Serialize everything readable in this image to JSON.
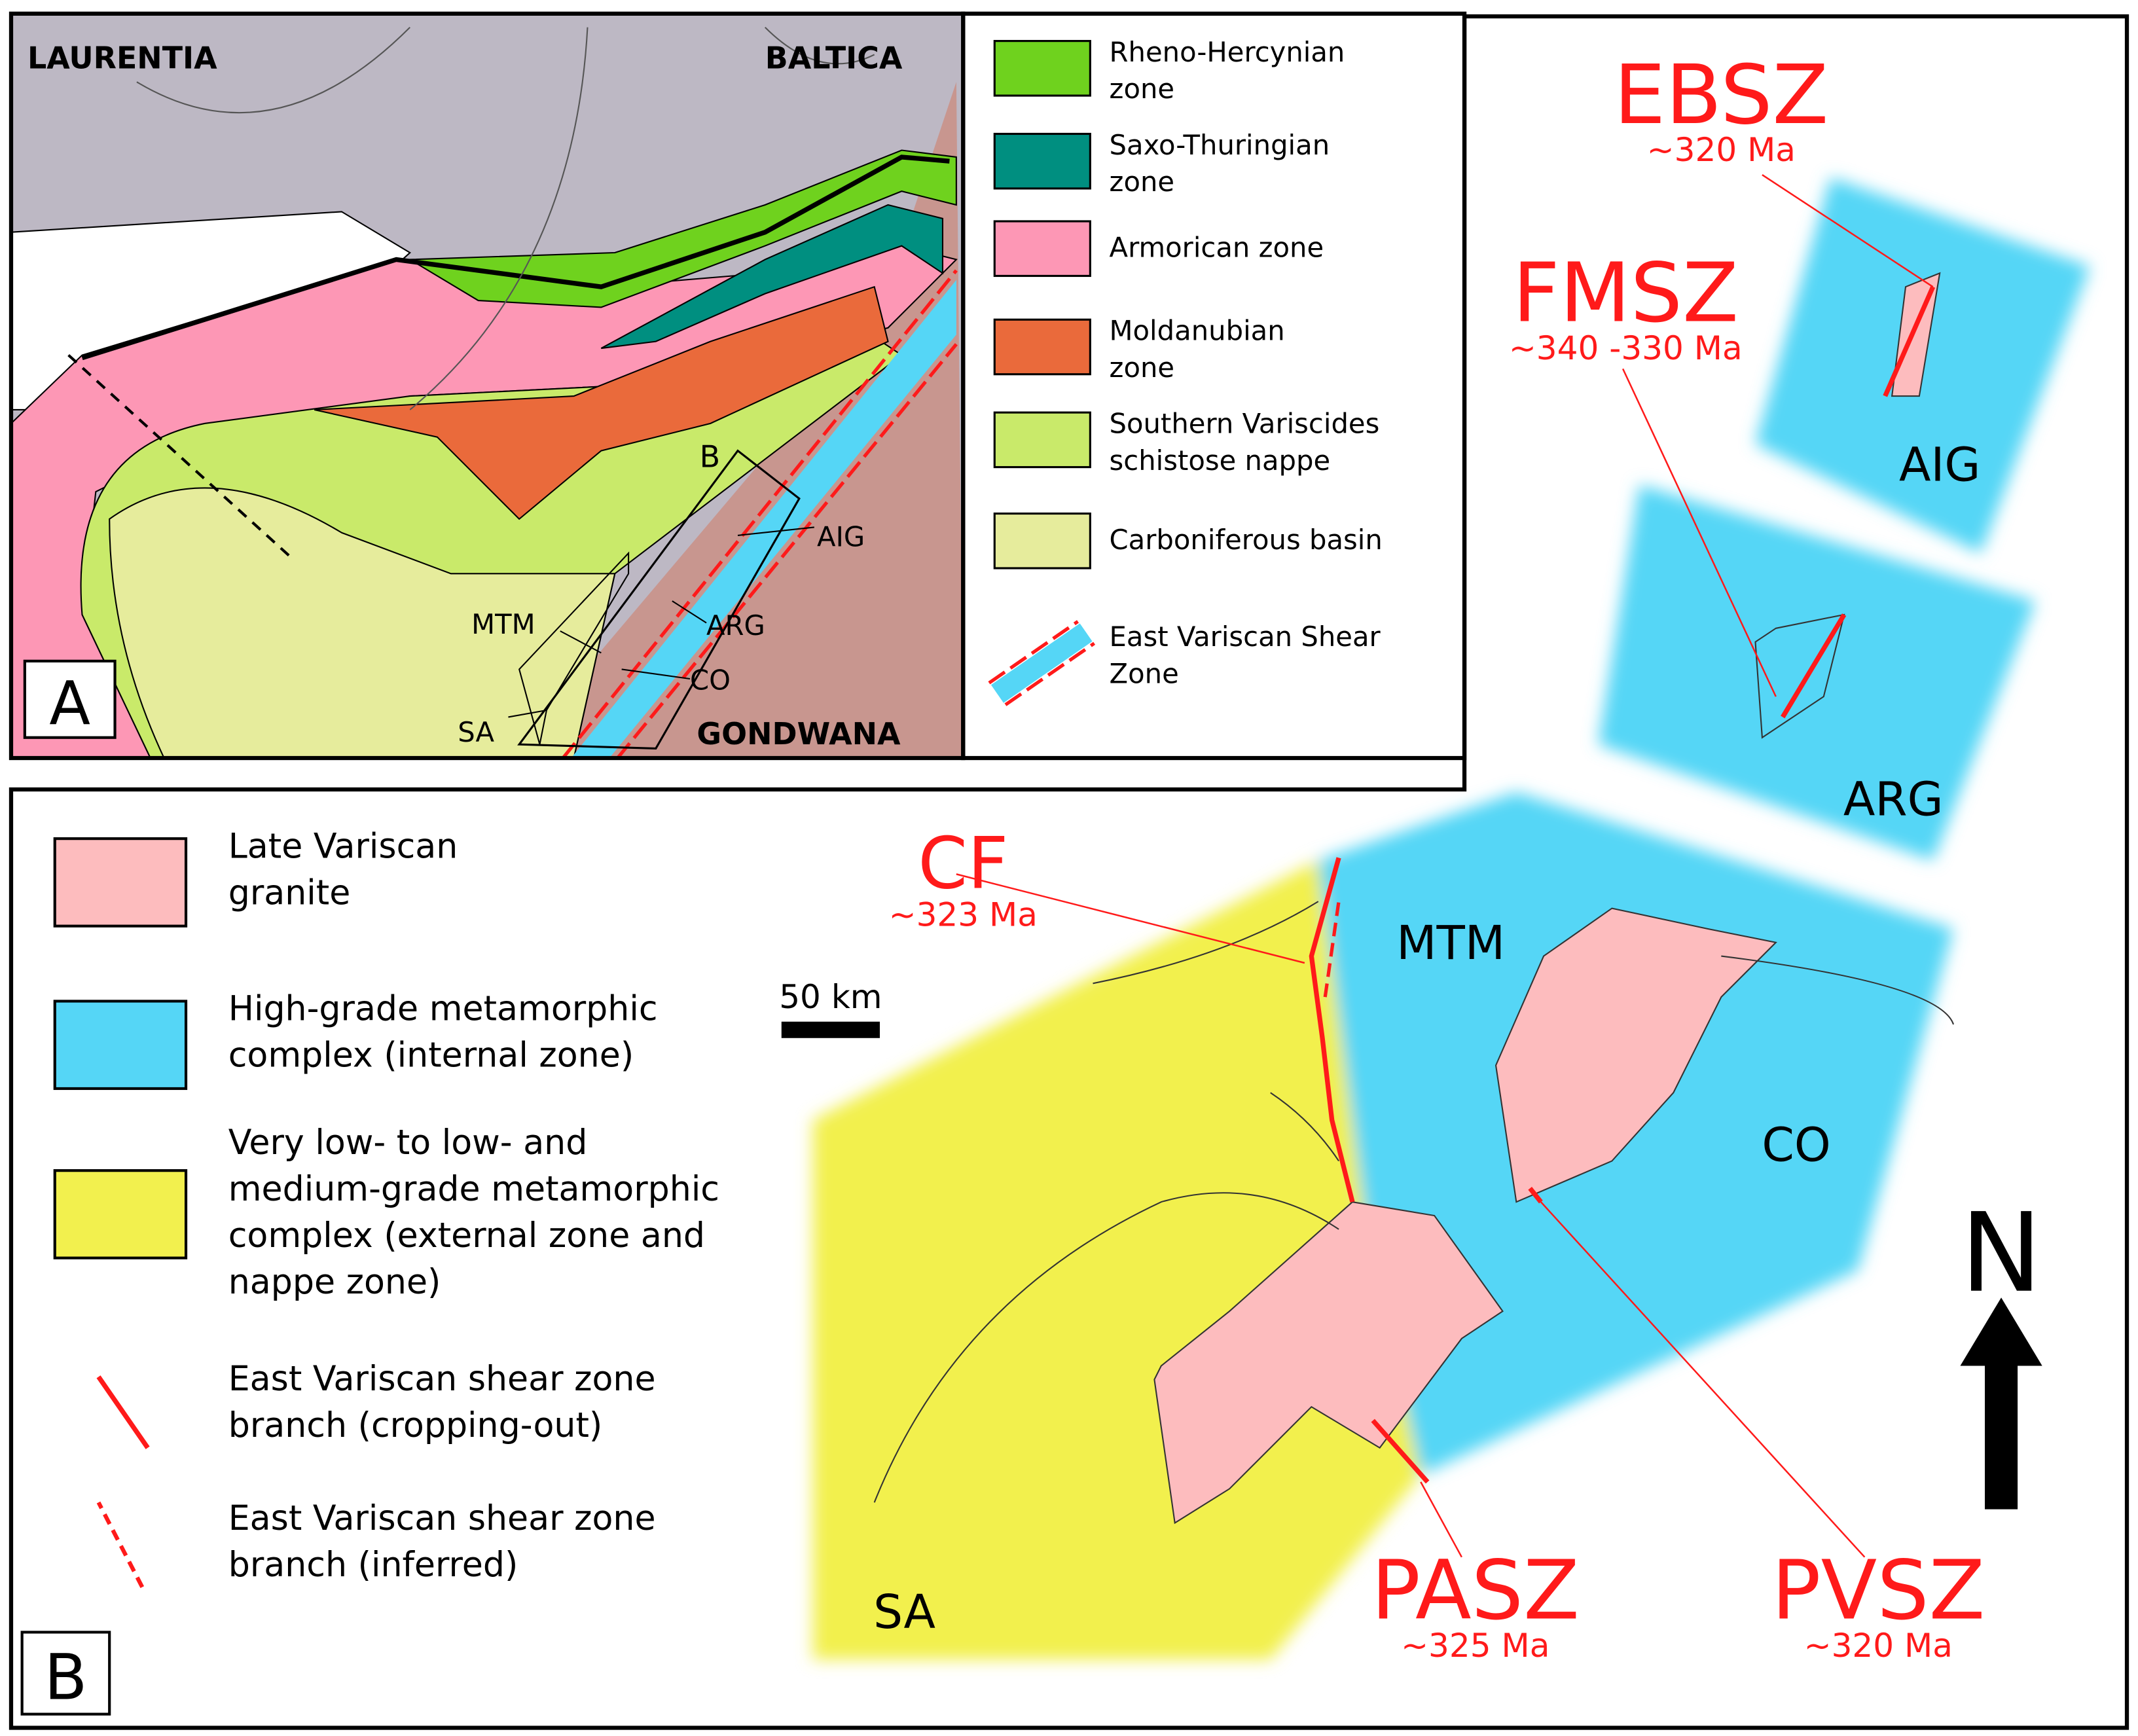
{
  "panel_a": {
    "label": "A",
    "labels": {
      "laurentia": "LAURENTIA",
      "baltica": "BALTICA",
      "gondwana": "GONDWANA",
      "box": "B",
      "aig": "AIG",
      "arg": "ARG",
      "mtm": "MTM",
      "co": "CO",
      "sa": "SA"
    },
    "legend": [
      {
        "lines": [
          "Rheno-Hercynian",
          "zone"
        ],
        "color": "#6fd21e"
      },
      {
        "lines": [
          "Saxo-Thuringian",
          "zone"
        ],
        "color": "#008f80"
      },
      {
        "lines": [
          "Armorican zone"
        ],
        "color": "#fd97b5"
      },
      {
        "lines": [
          "Moldanubian",
          "zone"
        ],
        "color": "#ea6a3b"
      },
      {
        "lines": [
          "Southern Variscides",
          "schistose nappe"
        ],
        "color": "#c9ea6a"
      },
      {
        "lines": [
          "Carboniferous basin"
        ],
        "color": "#e6ec9c"
      },
      {
        "lines": [
          "East Variscan Shear",
          "Zone"
        ],
        "color": "#55d6f6"
      }
    ]
  },
  "panel_b": {
    "label": "B",
    "legend": [
      {
        "lines": [
          "Late Variscan",
          "granite"
        ],
        "color": "#fdbcbe"
      },
      {
        "lines": [
          "High-grade metamorphic",
          "complex (internal zone)"
        ],
        "color": "#55d6f6"
      },
      {
        "lines": [
          "Very low- to low- and",
          "medium-grade metamorphic",
          "complex (external zone and",
          "nappe zone)"
        ],
        "color": "#f2f04e"
      },
      {
        "lines": [
          "East Variscan shear zone",
          "branch (cropping-out)"
        ]
      },
      {
        "lines": [
          "East Variscan shear zone",
          "branch (inferred)"
        ]
      }
    ],
    "labels": {
      "mtm": "MTM",
      "co": "CO",
      "aig": "AIG",
      "arg": "ARG",
      "sa": "SA"
    },
    "shear_zones": [
      {
        "name": "CF",
        "age": "~323 Ma"
      },
      {
        "name": "EBSZ",
        "age": "~320 Ma"
      },
      {
        "name": "FMSZ",
        "age": "~340 -330 Ma"
      },
      {
        "name": "PASZ",
        "age": "~325 Ma"
      },
      {
        "name": "PVSZ",
        "age": "~320 Ma"
      }
    ],
    "scale_bar": "50 km",
    "north": "N"
  }
}
